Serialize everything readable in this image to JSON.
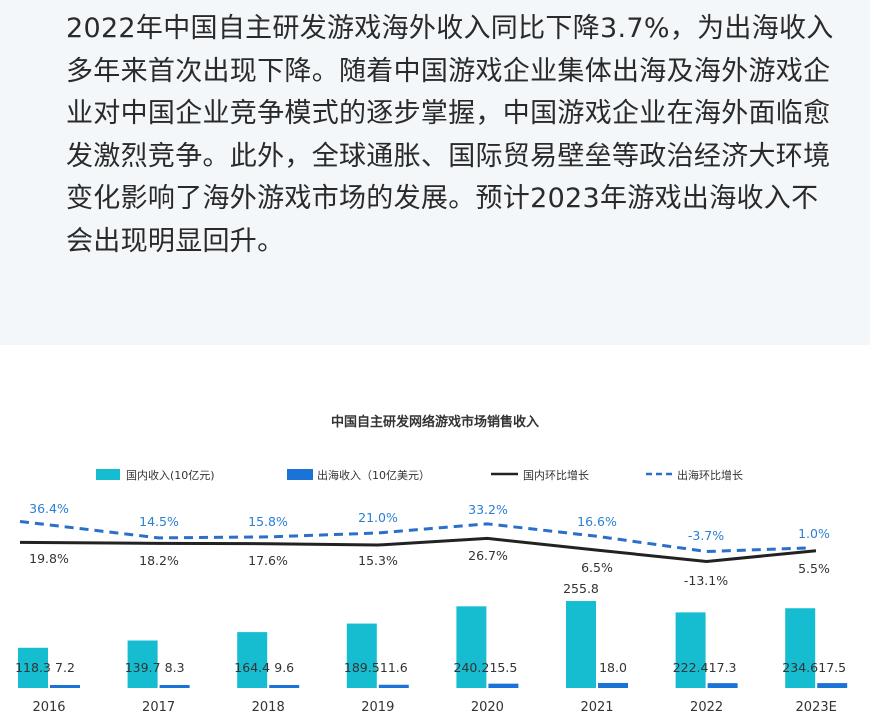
{
  "article": {
    "paragraph": "2022年中国自主研发游戏海外收入同比下降3.7%，为出海收入多年来首次出现下降。随着中国游戏企业集体出海及海外游戏企业对中国企业竞争模式的逐步掌握，中国游戏企业在海外面临愈发激烈竞争。此外，全球通胀、国际贸易壁垒等政治经济大环境变化影响了海外游戏市场的发展。预计2023年游戏出海收入不会出现明显回升。"
  },
  "colors": {
    "domestic": "#16bdd1",
    "overseas": "#1a73d6",
    "domestic_growth": "#222222",
    "overseas_growth": "#2a6fc9",
    "overseas_label": "#2a7fd4",
    "domestic_label": "#333333"
  },
  "chart_data": {
    "type": "bar",
    "title": "中国自主研发网络游戏市场销售收入",
    "categories": [
      "2016",
      "2017",
      "2018",
      "2019",
      "2020",
      "2021",
      "2022",
      "2023E"
    ],
    "series": [
      {
        "name": "国内收入(10亿元)",
        "kind": "bar",
        "values": [
          118.3,
          139.7,
          164.4,
          189.5,
          240.2,
          255.8,
          222.4,
          234.6
        ]
      },
      {
        "name": "出海收入（10亿美元）",
        "kind": "bar",
        "values": [
          7.2,
          8.3,
          9.6,
          11.6,
          15.5,
          18.0,
          17.3,
          17.5
        ]
      },
      {
        "name": "国内环比增长",
        "kind": "line",
        "values": [
          19.8,
          18.2,
          17.6,
          15.3,
          26.7,
          6.5,
          -13.1,
          5.5
        ],
        "labels": [
          "19.8%",
          "18.2%",
          "17.6%",
          "15.3%",
          "26.7%",
          "6.5%",
          "-13.1%",
          "5.5%"
        ]
      },
      {
        "name": "出海环比增长",
        "kind": "line",
        "style": "dashed",
        "values": [
          36.4,
          14.5,
          15.8,
          21.0,
          33.2,
          16.6,
          -3.7,
          1.0
        ],
        "labels": [
          "36.4%",
          "14.5%",
          "15.8%",
          "21.0%",
          "33.2%",
          "16.6%",
          "-3.7%",
          "1.0%"
        ]
      }
    ],
    "bar_labels": {
      "domestic": [
        "118.3",
        "139.7",
        "164.4",
        "189.5",
        "240.2",
        "255.8",
        "222.4",
        "234.6"
      ],
      "overseas": [
        "7.2",
        "8.3",
        "9.6",
        "11.6",
        "15.5",
        "18.0",
        "17.3",
        "17.5"
      ]
    },
    "legend_position": "top",
    "grid": false
  }
}
